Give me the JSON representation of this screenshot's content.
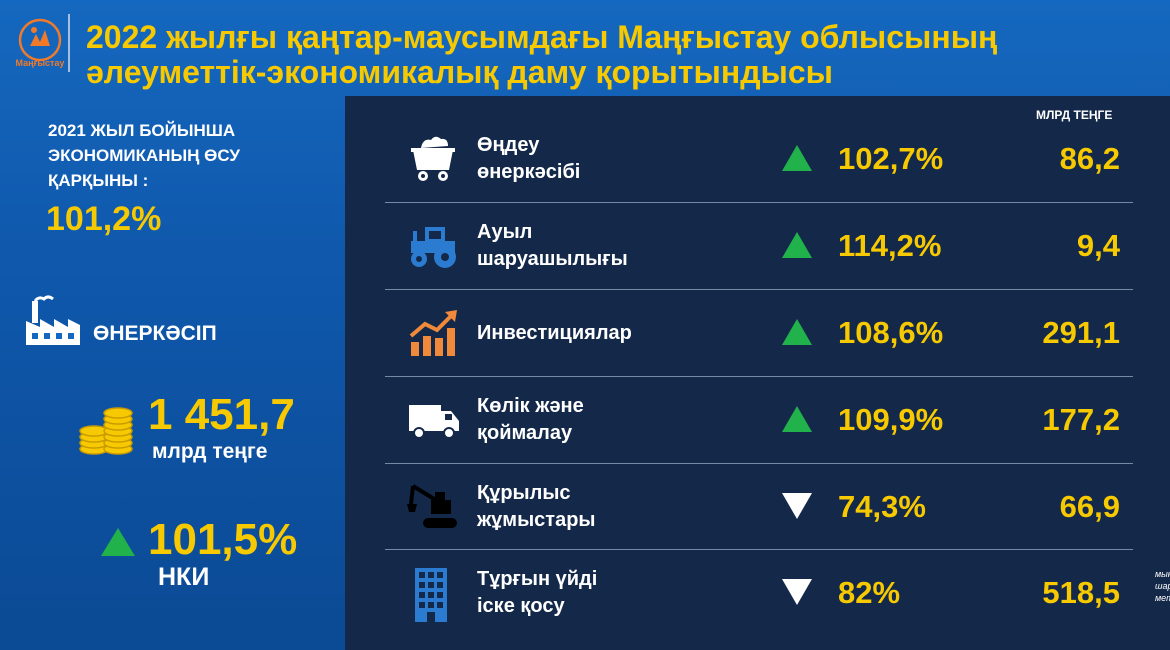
{
  "header": {
    "logo_text": "Маңғыстау",
    "title_line1": "2022 жылғы қаңтар-маусымдағы Маңғыстау облысының",
    "title_line2": "әлеуметтік-экономикалық даму қорытындысы"
  },
  "left": {
    "growth_heading": "2021 ЖЫЛ БОЙЫНША\nЭКОНОМИКАНЫҢ ӨСУ\nҚАРҚЫНЫ :",
    "growth_value": "101,2%",
    "industry_label": "ӨНЕРКӘСІП",
    "industry_amount": "1 451,7",
    "industry_amount_unit": "млрд теңге",
    "nki_value": "101,5%",
    "nki_label": "НКИ",
    "nki_direction": "up"
  },
  "table": {
    "unit_header": "МЛРД ТЕҢГЕ",
    "rows": [
      {
        "icon": "mine-cart-icon",
        "label": "Өңдеу\nөнеркәсібі",
        "direction": "up",
        "percent": "102,7%",
        "value": "86,2",
        "unit": ""
      },
      {
        "icon": "tractor-icon",
        "label": "Ауыл\nшаруашылығы",
        "direction": "up",
        "percent": "114,2%",
        "value": "9,4",
        "unit": ""
      },
      {
        "icon": "investment-chart-icon",
        "label": "Инвестициялар",
        "direction": "up",
        "percent": "108,6%",
        "value": "291,1",
        "unit": ""
      },
      {
        "icon": "truck-icon",
        "label": "Көлік және\nқоймалау",
        "direction": "up",
        "percent": "109,9%",
        "value": "177,2",
        "unit": ""
      },
      {
        "icon": "excavator-icon",
        "label": "Құрылыс\nжұмыстары",
        "direction": "down",
        "percent": "74,3%",
        "value": "66,9",
        "unit": ""
      },
      {
        "icon": "building-icon",
        "label": "Тұрғын үйді\nіске қосу",
        "direction": "down",
        "percent": "82%",
        "value": "518,5",
        "unit": "мың\nшаршы\nметр"
      }
    ]
  },
  "colors": {
    "accent_yellow": "#f7c900",
    "up_green": "#21b24b",
    "down_white": "#ffffff",
    "panel_navy": "#14294a",
    "background_blue": "#1568bf",
    "icon_blue": "#2b7bd0",
    "icon_orange": "#f08a3a"
  }
}
